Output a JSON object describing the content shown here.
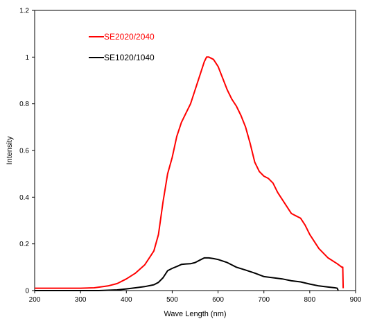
{
  "chart_data": {
    "type": "line",
    "title": "",
    "xlabel": "Wave Length (nm)",
    "ylabel": "Intensity",
    "xlim": [
      200,
      900
    ],
    "ylim": [
      0,
      1.2
    ],
    "x_ticks": [
      "200",
      "300",
      "400",
      "500",
      "600",
      "700",
      "800",
      "900"
    ],
    "y_ticks": [
      "0",
      "0.2",
      "0.4",
      "0.6",
      "0.8",
      "1",
      "1.2"
    ],
    "grid": false,
    "legend_position": "top-left",
    "series": [
      {
        "name": "SE2020/2040",
        "color": "#ff0000",
        "x": [
          200,
          230,
          300,
          330,
          360,
          380,
          400,
          420,
          440,
          450,
          460,
          470,
          480,
          490,
          500,
          510,
          520,
          530,
          540,
          550,
          560,
          570,
          575,
          580,
          590,
          600,
          610,
          620,
          630,
          640,
          650,
          660,
          670,
          680,
          690,
          700,
          710,
          720,
          730,
          740,
          750,
          760,
          770,
          780,
          790,
          800,
          820,
          840,
          860,
          870,
          872,
          873
        ],
        "y": [
          0.01,
          0.01,
          0.01,
          0.012,
          0.02,
          0.03,
          0.05,
          0.075,
          0.11,
          0.14,
          0.17,
          0.24,
          0.38,
          0.5,
          0.57,
          0.66,
          0.72,
          0.76,
          0.8,
          0.86,
          0.92,
          0.98,
          1.0,
          1.0,
          0.99,
          0.96,
          0.91,
          0.86,
          0.82,
          0.79,
          0.75,
          0.7,
          0.63,
          0.55,
          0.51,
          0.49,
          0.48,
          0.46,
          0.42,
          0.39,
          0.36,
          0.33,
          0.32,
          0.31,
          0.28,
          0.24,
          0.18,
          0.14,
          0.115,
          0.1,
          0.1,
          0.01
        ]
      },
      {
        "name": "SE1020/1040",
        "color": "#000000",
        "x": [
          200,
          340,
          380,
          400,
          420,
          440,
          460,
          470,
          480,
          490,
          500,
          510,
          520,
          530,
          540,
          550,
          560,
          570,
          580,
          590,
          600,
          620,
          640,
          660,
          680,
          700,
          720,
          740,
          760,
          780,
          800,
          820,
          840,
          855,
          860,
          862
        ],
        "y": [
          0.0,
          0.0,
          0.003,
          0.007,
          0.012,
          0.017,
          0.025,
          0.035,
          0.055,
          0.085,
          0.095,
          0.103,
          0.112,
          0.114,
          0.115,
          0.12,
          0.13,
          0.14,
          0.14,
          0.137,
          0.133,
          0.12,
          0.1,
          0.088,
          0.075,
          0.06,
          0.055,
          0.05,
          0.042,
          0.037,
          0.028,
          0.02,
          0.015,
          0.012,
          0.01,
          0.0
        ]
      }
    ]
  }
}
